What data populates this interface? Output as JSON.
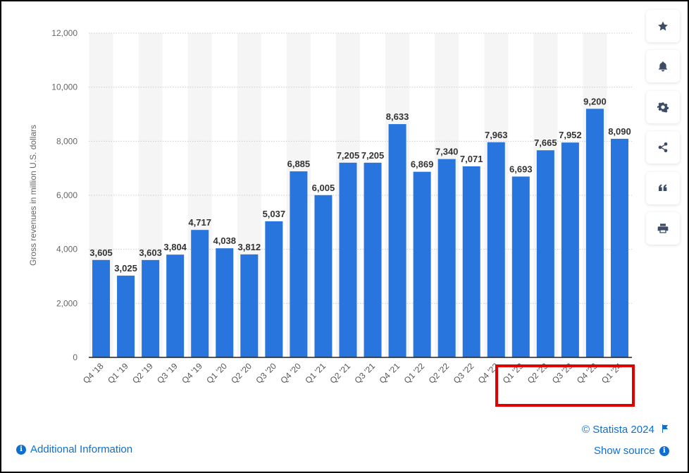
{
  "chart_data": {
    "type": "bar",
    "title": "",
    "xlabel": "",
    "ylabel": "Gross revenues in million U.S. dollars",
    "ylim": [
      0,
      12000
    ],
    "yticks": [
      0,
      2000,
      4000,
      6000,
      8000,
      10000,
      12000
    ],
    "ytick_labels": [
      "0",
      "2,000",
      "4,000",
      "6,000",
      "8,000",
      "10,000",
      "12,000"
    ],
    "grid": true,
    "bar_color": "#2876dd",
    "categories": [
      "Q4 '18",
      "Q1 '19",
      "Q2 '19",
      "Q3 '19",
      "Q4 '19",
      "Q1 '20",
      "Q2 '20",
      "Q3 '20",
      "Q4 '20",
      "Q1 '21",
      "Q2 '21",
      "Q3 '21",
      "Q4 '21",
      "Q1 '22",
      "Q2 '22",
      "Q3 '22",
      "Q4 '22",
      "Q1 '23",
      "Q2 '23",
      "Q3 '23",
      "Q4 '23",
      "Q1 '24"
    ],
    "values": [
      3605,
      3025,
      3603,
      3804,
      4717,
      4038,
      3812,
      5037,
      6885,
      6005,
      7205,
      7205,
      8633,
      6869,
      7340,
      7071,
      7963,
      6693,
      7665,
      7952,
      9200,
      8090
    ],
    "value_labels": [
      "3,605",
      "3,025",
      "3,603",
      "3,804",
      "4,717",
      "4,038",
      "3,812",
      "5,037",
      "6,885",
      "6,005",
      "7,205",
      "7,205",
      "8,633",
      "6,869",
      "7,340",
      "7,071",
      "7,963",
      "6,693",
      "7,665",
      "7,952",
      "9,200",
      "8,090"
    ],
    "annotations": [
      {
        "type": "highlight-box",
        "color": "#e00000",
        "covers_categories": [
          "Q1 '23",
          "Q2 '23",
          "Q3 '23",
          "Q4 '23",
          "Q1 '24"
        ]
      }
    ]
  },
  "sidebar": {
    "buttons": [
      {
        "name": "favorite",
        "icon": "star-icon"
      },
      {
        "name": "notification",
        "icon": "bell-icon"
      },
      {
        "name": "settings",
        "icon": "gear-icon"
      },
      {
        "name": "share",
        "icon": "share-icon"
      },
      {
        "name": "cite",
        "icon": "quote-icon"
      },
      {
        "name": "print",
        "icon": "print-icon"
      }
    ]
  },
  "footer": {
    "copyright": "© Statista 2024",
    "additional_info": "Additional Information",
    "show_source": "Show source",
    "info_glyph": "i"
  }
}
